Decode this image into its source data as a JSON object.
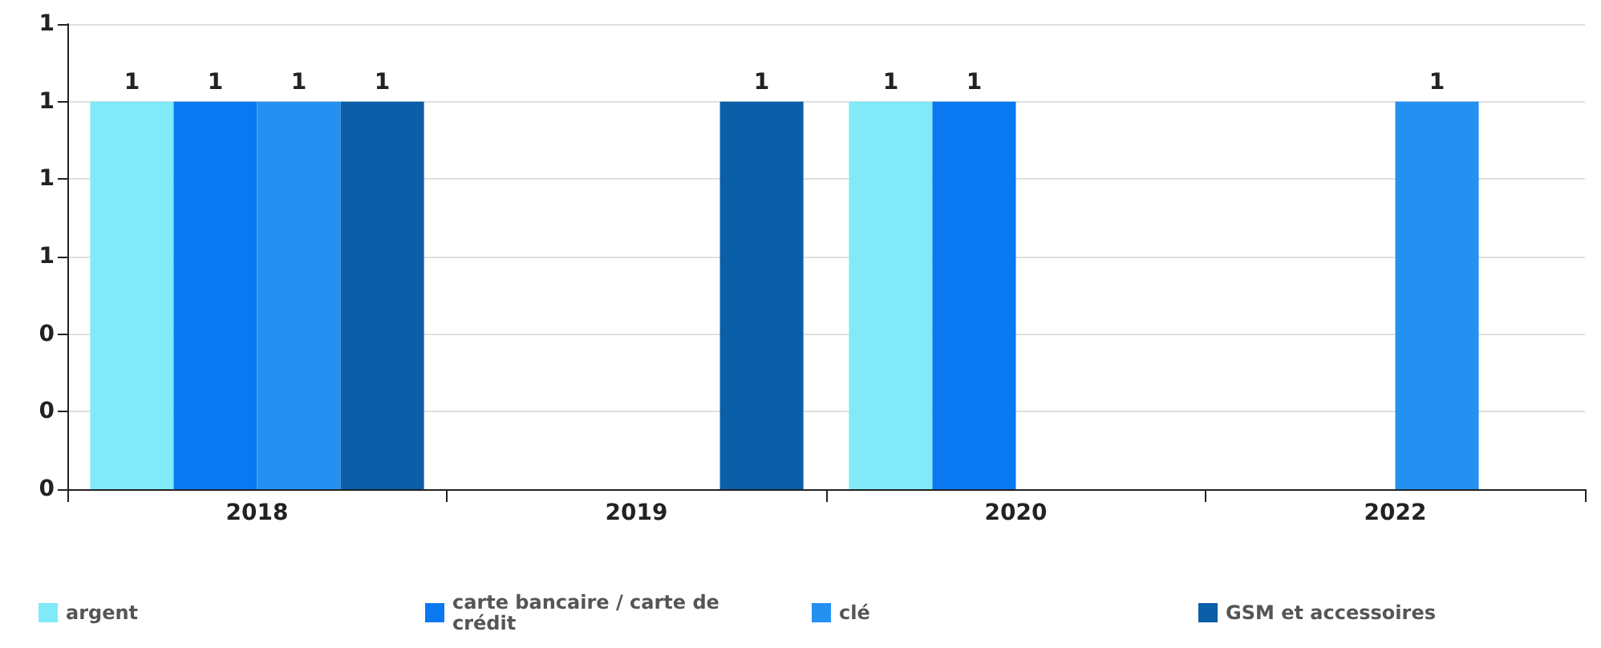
{
  "chart_data": {
    "type": "bar",
    "categories": [
      "2018",
      "2019",
      "2020",
      "2022"
    ],
    "series": [
      {
        "name": "argent",
        "color": "#80eaf8",
        "values": [
          1,
          null,
          1,
          null
        ]
      },
      {
        "name": "carte bancaire / carte de crédit",
        "color": "#0a78f0",
        "values": [
          1,
          null,
          1,
          null
        ]
      },
      {
        "name": "clé",
        "color": "#2490f2",
        "values": [
          1,
          null,
          null,
          1
        ]
      },
      {
        "name": "GSM et accessoires",
        "color": "#0b5ea8",
        "values": [
          1,
          1,
          null,
          null
        ]
      }
    ],
    "ylim": [
      0,
      1.2
    ],
    "yticks": [
      0,
      {
        "value": 0.2,
        "label": "0"
      },
      {
        "value": 0.4,
        "label": "0"
      },
      {
        "value": 0.6,
        "label": "1"
      },
      {
        "value": 0.8,
        "label": "1"
      },
      {
        "value": 1,
        "label": "1"
      },
      {
        "value": 1.2,
        "label": "1"
      }
    ],
    "grid": "y",
    "legend": "bottom",
    "data_labels": true
  }
}
